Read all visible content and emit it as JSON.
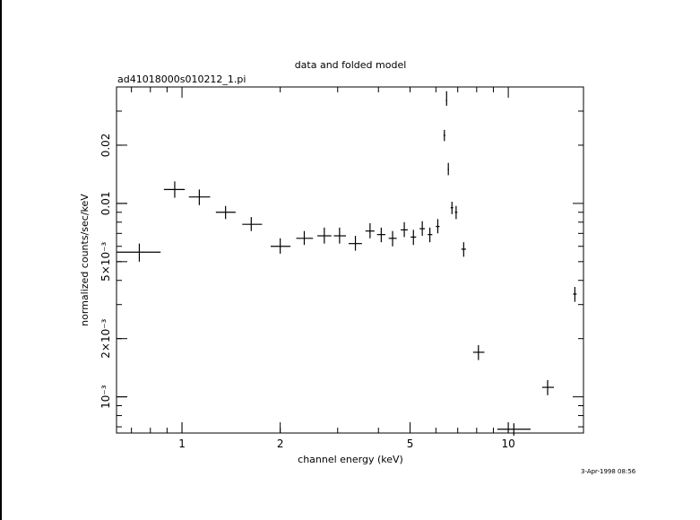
{
  "chart_data": {
    "type": "scatter",
    "title": "data and folded model",
    "subtitle": "ad41018000s010212_1.pi",
    "xlabel": "channel energy (keV)",
    "ylabel": "normalized counts/sec/keV",
    "xscale": "log",
    "yscale": "log",
    "xlim": [
      0.63,
      17.0
    ],
    "ylim": [
      0.00065,
      0.04
    ],
    "x_ticks": [
      {
        "value": 1,
        "label": "1"
      },
      {
        "value": 2,
        "label": "2"
      },
      {
        "value": 5,
        "label": "5"
      },
      {
        "value": 10,
        "label": "10"
      }
    ],
    "y_ticks": [
      {
        "value": 0.001,
        "label": "10⁻³"
      },
      {
        "value": 0.002,
        "label": "2×10⁻³"
      },
      {
        "value": 0.005,
        "label": "5×10⁻³"
      },
      {
        "value": 0.01,
        "label": "0.01"
      },
      {
        "value": 0.02,
        "label": "0.02"
      }
    ],
    "grid": false,
    "color": "#000000",
    "points": [
      {
        "x": 0.74,
        "xlo": 0.63,
        "xhi": 0.86,
        "y": 0.0056,
        "ylo": 0.005,
        "yhi": 0.0062
      },
      {
        "x": 0.95,
        "xlo": 0.88,
        "xhi": 1.02,
        "y": 0.0118,
        "ylo": 0.0107,
        "yhi": 0.013
      },
      {
        "x": 1.13,
        "xlo": 1.05,
        "xhi": 1.22,
        "y": 0.0108,
        "ylo": 0.0098,
        "yhi": 0.0118
      },
      {
        "x": 1.36,
        "xlo": 1.27,
        "xhi": 1.46,
        "y": 0.009,
        "ylo": 0.0083,
        "yhi": 0.0097
      },
      {
        "x": 1.63,
        "xlo": 1.53,
        "xhi": 1.76,
        "y": 0.0078,
        "ylo": 0.0072,
        "yhi": 0.0085
      },
      {
        "x": 2.0,
        "xlo": 1.87,
        "xhi": 2.15,
        "y": 0.006,
        "ylo": 0.0055,
        "yhi": 0.0066
      },
      {
        "x": 2.37,
        "xlo": 2.24,
        "xhi": 2.52,
        "y": 0.0066,
        "ylo": 0.0061,
        "yhi": 0.0072
      },
      {
        "x": 2.73,
        "xlo": 2.6,
        "xhi": 2.87,
        "y": 0.0068,
        "ylo": 0.0062,
        "yhi": 0.0075
      },
      {
        "x": 3.04,
        "xlo": 2.92,
        "xhi": 3.18,
        "y": 0.0068,
        "ylo": 0.0062,
        "yhi": 0.0075
      },
      {
        "x": 3.4,
        "xlo": 3.24,
        "xhi": 3.56,
        "y": 0.0062,
        "ylo": 0.0057,
        "yhi": 0.0068
      },
      {
        "x": 3.77,
        "xlo": 3.65,
        "xhi": 3.89,
        "y": 0.0072,
        "ylo": 0.0066,
        "yhi": 0.0079
      },
      {
        "x": 4.08,
        "xlo": 3.96,
        "xhi": 4.2,
        "y": 0.0069,
        "ylo": 0.0063,
        "yhi": 0.0075
      },
      {
        "x": 4.42,
        "xlo": 4.3,
        "xhi": 4.55,
        "y": 0.0066,
        "ylo": 0.006,
        "yhi": 0.0072
      },
      {
        "x": 4.8,
        "xlo": 4.68,
        "xhi": 4.92,
        "y": 0.0073,
        "ylo": 0.0067,
        "yhi": 0.008
      },
      {
        "x": 5.12,
        "xlo": 5.02,
        "xhi": 5.22,
        "y": 0.0067,
        "ylo": 0.0061,
        "yhi": 0.0073
      },
      {
        "x": 5.45,
        "xlo": 5.35,
        "xhi": 5.55,
        "y": 0.0074,
        "ylo": 0.0068,
        "yhi": 0.0081
      },
      {
        "x": 5.75,
        "xlo": 5.66,
        "xhi": 5.85,
        "y": 0.0069,
        "ylo": 0.0063,
        "yhi": 0.0075
      },
      {
        "x": 6.08,
        "xlo": 6.0,
        "xhi": 6.16,
        "y": 0.0076,
        "ylo": 0.007,
        "yhi": 0.0083
      },
      {
        "x": 6.37,
        "xlo": 6.33,
        "xhi": 6.41,
        "y": 0.0225,
        "ylo": 0.021,
        "yhi": 0.024
      },
      {
        "x": 6.47,
        "xlo": 6.44,
        "xhi": 6.5,
        "y": 0.034,
        "ylo": 0.032,
        "yhi": 0.038
      },
      {
        "x": 6.55,
        "xlo": 6.52,
        "xhi": 6.58,
        "y": 0.015,
        "ylo": 0.014,
        "yhi": 0.0162
      },
      {
        "x": 6.72,
        "xlo": 6.66,
        "xhi": 6.78,
        "y": 0.0095,
        "ylo": 0.0088,
        "yhi": 0.0102
      },
      {
        "x": 6.92,
        "xlo": 6.86,
        "xhi": 6.98,
        "y": 0.009,
        "ylo": 0.0083,
        "yhi": 0.0097
      },
      {
        "x": 7.3,
        "xlo": 7.18,
        "xhi": 7.42,
        "y": 0.0058,
        "ylo": 0.0053,
        "yhi": 0.0063
      },
      {
        "x": 8.1,
        "xlo": 7.8,
        "xhi": 8.45,
        "y": 0.0017,
        "ylo": 0.00155,
        "yhi": 0.00185
      },
      {
        "x": 10.4,
        "xlo": 9.25,
        "xhi": 11.7,
        "y": 0.00068,
        "ylo": 0.00063,
        "yhi": 0.00073
      },
      {
        "x": 13.2,
        "xlo": 12.7,
        "xhi": 13.8,
        "y": 0.00112,
        "ylo": 0.00102,
        "yhi": 0.00122
      },
      {
        "x": 16.0,
        "xlo": 15.8,
        "xhi": 16.2,
        "y": 0.0034,
        "ylo": 0.0031,
        "yhi": 0.0037
      }
    ]
  },
  "footer": {
    "timestamp": "3-Apr-1998 08:56"
  }
}
